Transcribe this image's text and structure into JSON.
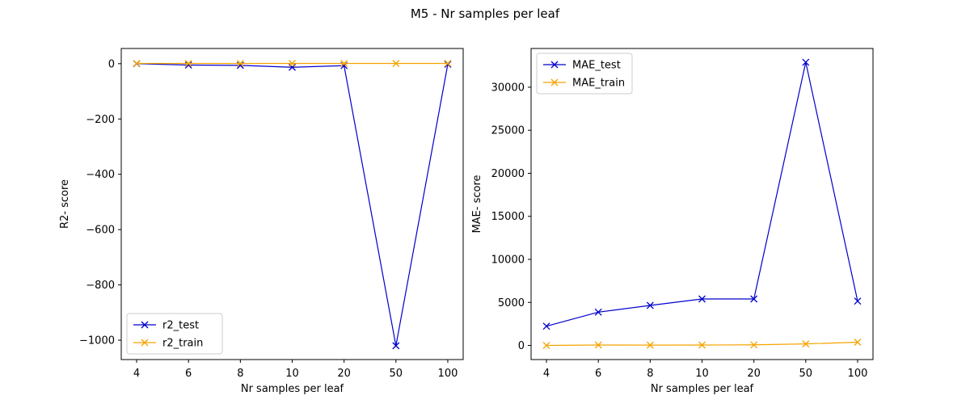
{
  "figure": {
    "title": "M5 - Nr samples per leaf"
  },
  "chart_data": [
    {
      "type": "line",
      "title": "",
      "xlabel": "Nr samples per leaf",
      "ylabel": "R2- score",
      "categories": [
        "4",
        "6",
        "8",
        "10",
        "20",
        "50",
        "100"
      ],
      "ylim": [
        -1070,
        55
      ],
      "yticks": [
        0,
        -200,
        -400,
        -600,
        -800,
        -1000
      ],
      "ytick_labels": [
        "0",
        "−200",
        "−400",
        "−600",
        "−800",
        "−1000"
      ],
      "grid": false,
      "legend_position": "lower-left",
      "series": [
        {
          "name": "r2_test",
          "color": "#0000cc",
          "marker": "x",
          "values": [
            0,
            -5,
            -6,
            -13,
            -7,
            -1020,
            -2
          ]
        },
        {
          "name": "r2_train",
          "color": "#f5a300",
          "marker": "x",
          "values": [
            1,
            1,
            1,
            1,
            1,
            1,
            1
          ]
        }
      ]
    },
    {
      "type": "line",
      "title": "",
      "xlabel": "Nr samples per leaf",
      "ylabel": "MAE- score",
      "categories": [
        "4",
        "6",
        "8",
        "10",
        "20",
        "50",
        "100"
      ],
      "ylim": [
        -1640,
        34500
      ],
      "yticks": [
        0,
        5000,
        10000,
        15000,
        20000,
        25000,
        30000
      ],
      "ytick_labels": [
        "0",
        "5000",
        "10000",
        "15000",
        "20000",
        "25000",
        "30000"
      ],
      "grid": false,
      "legend_position": "upper-left",
      "series": [
        {
          "name": "MAE_test",
          "color": "#0000cc",
          "marker": "x",
          "values": [
            2240,
            3870,
            4650,
            5400,
            5400,
            32900,
            5150
          ]
        },
        {
          "name": "MAE_train",
          "color": "#f5a300",
          "marker": "x",
          "values": [
            0,
            50,
            40,
            50,
            70,
            180,
            380
          ]
        }
      ]
    }
  ]
}
